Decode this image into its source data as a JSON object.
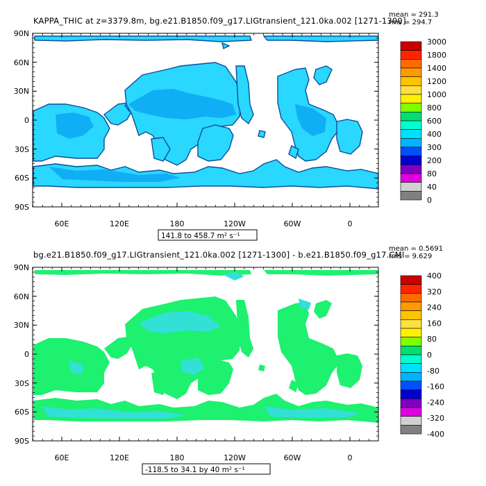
{
  "panels": [
    {
      "title": "KAPPA_THIC at z=3379.8m, bg.e21.B1850.f09_g17.LIGtransient_121.0ka.002 [1271-1300]",
      "stats": {
        "mean": "mean = 291.3",
        "rms": "rms = 294.7"
      },
      "range_label": "141.8 to 458.7 m² s⁻¹",
      "y_ticks": [
        "90N",
        "60N",
        "30N",
        "0",
        "30S",
        "60S",
        "90S"
      ],
      "x_ticks": [
        "60E",
        "120E",
        "180",
        "120W",
        "60W",
        "0"
      ],
      "colorbar": {
        "labels": [
          "3000",
          "1800",
          "1400",
          "1200",
          "1000",
          "800",
          "600",
          "400",
          "300",
          "200",
          "80",
          "40",
          "0"
        ],
        "colors": [
          "#c80000",
          "#ff2400",
          "#ff6a00",
          "#ff9a00",
          "#ffc400",
          "#ffe040",
          "#fff000",
          "#80ff00",
          "#00e070",
          "#00ffd0",
          "#00e0ff",
          "#00b4ff",
          "#0050ff",
          "#0000d0",
          "#8000c0",
          "#e000e0",
          "#d0d0d0",
          "#808080"
        ]
      },
      "fill_colors": {
        "primary": "#29d7ff",
        "secondary": "#10aef5",
        "coast": "#0a4c9a"
      }
    },
    {
      "title": "bg.e21.B1850.f09_g17.LIGtransient_121.0ka.002 [1271-1300] - b.e21.B1850.f09_g17.CMI",
      "stats": {
        "mean": "mean = 0.5691",
        "rms": "rms = 9.629"
      },
      "range_label": "-118.5 to 34.1 by 40 m² s⁻¹",
      "y_ticks": [
        "90N",
        "60N",
        "30N",
        "0",
        "30S",
        "60S",
        "90S"
      ],
      "x_ticks": [
        "60E",
        "120E",
        "180",
        "120W",
        "60W",
        "0"
      ],
      "colorbar": {
        "labels": [
          "400",
          "320",
          "240",
          "160",
          "80",
          "0",
          "-80",
          "-160",
          "-240",
          "-320",
          "-400"
        ],
        "colors": [
          "#c80000",
          "#ff2400",
          "#ff6a00",
          "#ff9a00",
          "#ffc400",
          "#ffe040",
          "#fff000",
          "#80ff00",
          "#00e070",
          "#00ffd0",
          "#00e0ff",
          "#00b4ff",
          "#0050ff",
          "#0000d0",
          "#8000c0",
          "#e000e0",
          "#d0d0d0",
          "#808080"
        ]
      },
      "fill_colors": {
        "primary": "#1ef070",
        "secondary": "#33e0d6",
        "coast": "#1ef070"
      }
    }
  ]
}
